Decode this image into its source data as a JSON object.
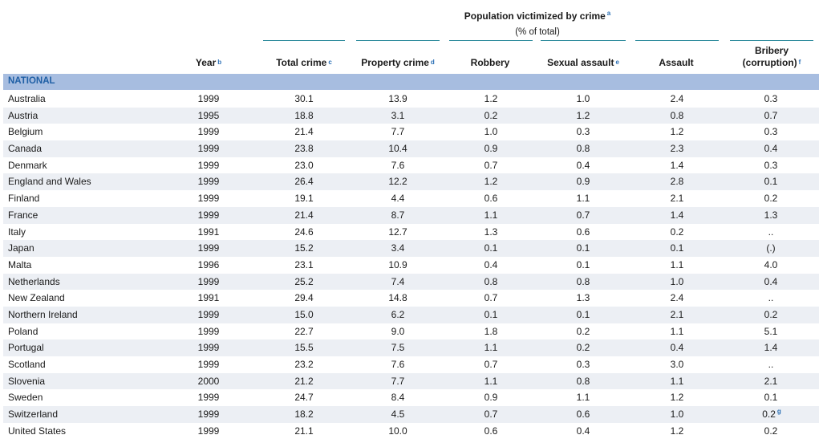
{
  "header": {
    "group_title": "Population victimized by crime",
    "group_title_note": "a",
    "group_subtitle": "(% of total)",
    "columns": [
      {
        "label": "Year",
        "note": "b"
      },
      {
        "label": "Total crime",
        "note": "c"
      },
      {
        "label": "Property crime",
        "note": "d"
      },
      {
        "label": "Robbery",
        "note": ""
      },
      {
        "label": "Sexual assault",
        "note": "e"
      },
      {
        "label": "Assault",
        "note": ""
      },
      {
        "label": "Bribery",
        "label2": "(corruption)",
        "note": "f"
      }
    ]
  },
  "section": {
    "label": "NATIONAL"
  },
  "rows": [
    {
      "country": "Australia",
      "year": "1999",
      "total": "30.1",
      "property": "13.9",
      "robbery": "1.2",
      "sexual": "1.0",
      "assault": "2.4",
      "bribery": "0.3",
      "bribery_note": ""
    },
    {
      "country": "Austria",
      "year": "1995",
      "total": "18.8",
      "property": "3.1",
      "robbery": "0.2",
      "sexual": "1.2",
      "assault": "0.8",
      "bribery": "0.7",
      "bribery_note": ""
    },
    {
      "country": "Belgium",
      "year": "1999",
      "total": "21.4",
      "property": "7.7",
      "robbery": "1.0",
      "sexual": "0.3",
      "assault": "1.2",
      "bribery": "0.3",
      "bribery_note": ""
    },
    {
      "country": "Canada",
      "year": "1999",
      "total": "23.8",
      "property": "10.4",
      "robbery": "0.9",
      "sexual": "0.8",
      "assault": "2.3",
      "bribery": "0.4",
      "bribery_note": ""
    },
    {
      "country": "Denmark",
      "year": "1999",
      "total": "23.0",
      "property": "7.6",
      "robbery": "0.7",
      "sexual": "0.4",
      "assault": "1.4",
      "bribery": "0.3",
      "bribery_note": ""
    },
    {
      "country": "England and Wales",
      "year": "1999",
      "total": "26.4",
      "property": "12.2",
      "robbery": "1.2",
      "sexual": "0.9",
      "assault": "2.8",
      "bribery": "0.1",
      "bribery_note": ""
    },
    {
      "country": "Finland",
      "year": "1999",
      "total": "19.1",
      "property": "4.4",
      "robbery": "0.6",
      "sexual": "1.1",
      "assault": "2.1",
      "bribery": "0.2",
      "bribery_note": ""
    },
    {
      "country": "France",
      "year": "1999",
      "total": "21.4",
      "property": "8.7",
      "robbery": "1.1",
      "sexual": "0.7",
      "assault": "1.4",
      "bribery": "1.3",
      "bribery_note": ""
    },
    {
      "country": "Italy",
      "year": "1991",
      "total": "24.6",
      "property": "12.7",
      "robbery": "1.3",
      "sexual": "0.6",
      "assault": "0.2",
      "bribery": "..",
      "bribery_note": ""
    },
    {
      "country": "Japan",
      "year": "1999",
      "total": "15.2",
      "property": "3.4",
      "robbery": "0.1",
      "sexual": "0.1",
      "assault": "0.1",
      "bribery": "(.)",
      "bribery_note": ""
    },
    {
      "country": "Malta",
      "year": "1996",
      "total": "23.1",
      "property": "10.9",
      "robbery": "0.4",
      "sexual": "0.1",
      "assault": "1.1",
      "bribery": "4.0",
      "bribery_note": ""
    },
    {
      "country": "Netherlands",
      "year": "1999",
      "total": "25.2",
      "property": "7.4",
      "robbery": "0.8",
      "sexual": "0.8",
      "assault": "1.0",
      "bribery": "0.4",
      "bribery_note": ""
    },
    {
      "country": "New Zealand",
      "year": "1991",
      "total": "29.4",
      "property": "14.8",
      "robbery": "0.7",
      "sexual": "1.3",
      "assault": "2.4",
      "bribery": "..",
      "bribery_note": ""
    },
    {
      "country": "Northern Ireland",
      "year": "1999",
      "total": "15.0",
      "property": "6.2",
      "robbery": "0.1",
      "sexual": "0.1",
      "assault": "2.1",
      "bribery": "0.2",
      "bribery_note": ""
    },
    {
      "country": "Poland",
      "year": "1999",
      "total": "22.7",
      "property": "9.0",
      "robbery": "1.8",
      "sexual": "0.2",
      "assault": "1.1",
      "bribery": "5.1",
      "bribery_note": ""
    },
    {
      "country": "Portugal",
      "year": "1999",
      "total": "15.5",
      "property": "7.5",
      "robbery": "1.1",
      "sexual": "0.2",
      "assault": "0.4",
      "bribery": "1.4",
      "bribery_note": ""
    },
    {
      "country": "Scotland",
      "year": "1999",
      "total": "23.2",
      "property": "7.6",
      "robbery": "0.7",
      "sexual": "0.3",
      "assault": "3.0",
      "bribery": "..",
      "bribery_note": ""
    },
    {
      "country": "Slovenia",
      "year": "2000",
      "total": "21.2",
      "property": "7.7",
      "robbery": "1.1",
      "sexual": "0.8",
      "assault": "1.1",
      "bribery": "2.1",
      "bribery_note": ""
    },
    {
      "country": "Sweden",
      "year": "1999",
      "total": "24.7",
      "property": "8.4",
      "robbery": "0.9",
      "sexual": "1.1",
      "assault": "1.2",
      "bribery": "0.1",
      "bribery_note": ""
    },
    {
      "country": "Switzerland",
      "year": "1999",
      "total": "18.2",
      "property": "4.5",
      "robbery": "0.7",
      "sexual": "0.6",
      "assault": "1.0",
      "bribery": "0.2",
      "bribery_note": "g"
    },
    {
      "country": "United States",
      "year": "1999",
      "total": "21.1",
      "property": "10.0",
      "robbery": "0.6",
      "sexual": "0.4",
      "assault": "1.2",
      "bribery": "0.2",
      "bribery_note": ""
    }
  ]
}
